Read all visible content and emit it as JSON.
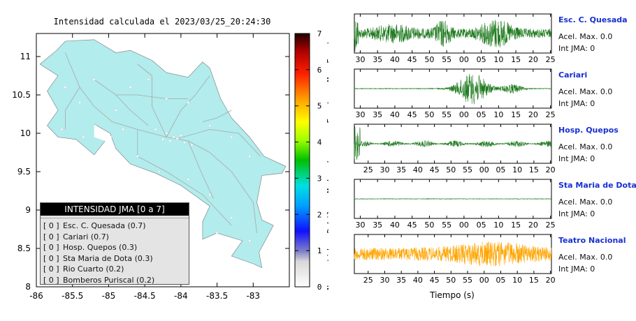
{
  "map": {
    "title": "Intensidad calculada el 2023/03/25_20:24:30",
    "x_ticks": [
      "-86",
      "-85.5",
      "-85",
      "-84.5",
      "-84",
      "-83.5",
      "-83"
    ],
    "y_ticks": [
      "11",
      "10.5",
      "10",
      "9.5",
      "9",
      "8.5",
      "8"
    ],
    "land_color": "#b2ecec",
    "legend": {
      "header": "INTENSIDAD JMA [0 a 7]",
      "rows": [
        {
          "code": "[ 0 ]",
          "label": "Esc. C. Quesada (0.7)"
        },
        {
          "code": "[ 0 ]",
          "label": "Cariari (0.7)"
        },
        {
          "code": "[ 0 ]",
          "label": "Hosp. Quepos (0.3)"
        },
        {
          "code": "[ 0 ]",
          "label": "Sta Maria de Dota (0.3)"
        },
        {
          "code": "[ 0 ]",
          "label": "Rio Cuarto (0.2)"
        },
        {
          "code": "[ 0 ]",
          "label": "Bomberos Puriscal (0.2)"
        }
      ]
    }
  },
  "colorbar": {
    "ticks": [
      "7",
      "6",
      "5",
      "4",
      "3",
      "2",
      "1",
      "0"
    ],
    "labels": [
      "Muy Fuerte",
      "Fuerte",
      "Moderado",
      "Debil",
      "No sentido"
    ]
  },
  "traces": {
    "xlabel": "Tiempo (s)",
    "channels": [
      {
        "name": "Esc. C. Quesada",
        "accel": "Acel. Max. 0.0",
        "jma": "Int JMA: 0",
        "color": "#1e7a1e",
        "ticks": [
          "30",
          "35",
          "40",
          "45",
          "50",
          "55",
          "00",
          "05",
          "10",
          "15",
          "20",
          "25"
        ]
      },
      {
        "name": "Cariari",
        "accel": "Acel. Max. 0.0",
        "jma": "Int JMA: 0",
        "color": "#1e7a1e",
        "ticks": [
          "30",
          "35",
          "40",
          "45",
          "50",
          "55",
          "00",
          "05",
          "10",
          "15",
          "20",
          "25"
        ]
      },
      {
        "name": "Hosp. Quepos",
        "accel": "Acel. Max. 0.0",
        "jma": "Int JMA: 0",
        "color": "#1e7a1e",
        "ticks": [
          "25",
          "30",
          "35",
          "40",
          "45",
          "50",
          "55",
          "00",
          "05",
          "10",
          "15",
          "20"
        ]
      },
      {
        "name": "Sta Maria de Dota",
        "accel": "Acel. Max. 0.0",
        "jma": "Int JMA: 0",
        "color": "#1e7a1e",
        "ticks": [
          "30",
          "35",
          "40",
          "45",
          "50",
          "55",
          "00",
          "05",
          "10",
          "15",
          "20",
          "25"
        ]
      },
      {
        "name": "Teatro Nacional",
        "accel": "Acel. Max. 0.0",
        "jma": "Int JMA: 0",
        "color": "#ffa500",
        "ticks": [
          "25",
          "30",
          "35",
          "40",
          "45",
          "50",
          "55",
          "00",
          "05",
          "10",
          "15",
          "20"
        ]
      }
    ]
  },
  "chart_data": {
    "type": "line",
    "title": "Intensidad calculada el 2023/03/25_20:24:30",
    "xlabel": "Tiempo (s)",
    "series": [
      {
        "name": "Esc. C. Quesada",
        "values": [
          0.7
        ]
      },
      {
        "name": "Cariari",
        "values": [
          0.7
        ]
      },
      {
        "name": "Hosp. Quepos",
        "values": [
          0.3
        ]
      },
      {
        "name": "Sta Maria de Dota",
        "values": [
          0.3
        ]
      },
      {
        "name": "Rio Cuarto",
        "values": [
          0.2
        ]
      },
      {
        "name": "Bomberos Puriscal",
        "values": [
          0.2
        ]
      }
    ],
    "ylim": [
      0,
      7
    ]
  }
}
